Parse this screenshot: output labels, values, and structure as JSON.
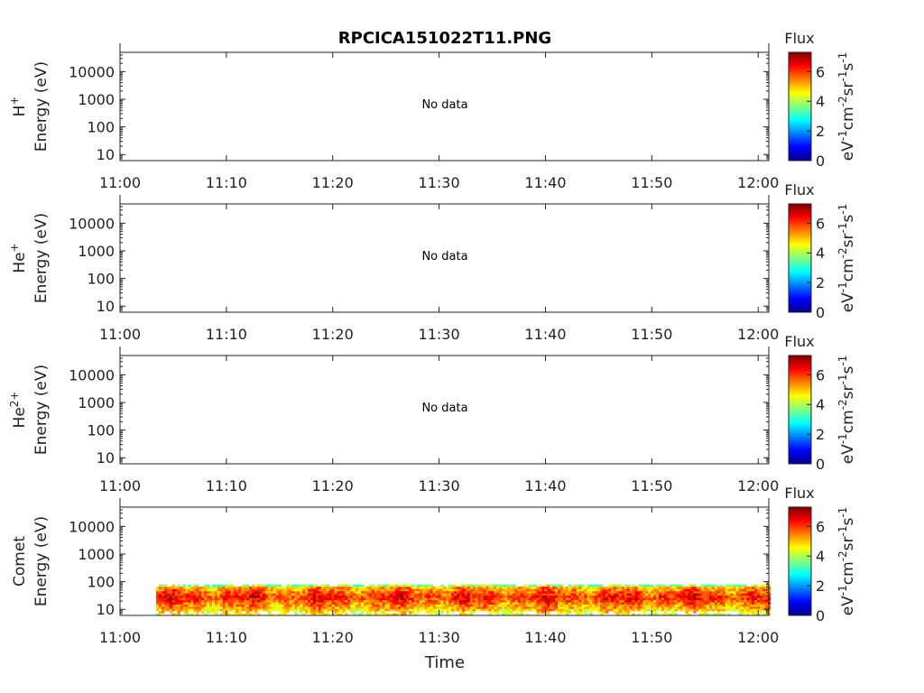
{
  "chart_data": {
    "title": "RPCICA151022T11.PNG",
    "type": "heatmap",
    "xlabel": "Time",
    "x_ticks": [
      "11:00",
      "11:10",
      "11:20",
      "11:30",
      "11:40",
      "11:50",
      "12:00"
    ],
    "x_range": [
      "11:00",
      "12:01"
    ],
    "y_scale": "log",
    "y_range": [
      6,
      50000
    ],
    "y_ticks": [
      "10",
      "100",
      "1000",
      "10000"
    ],
    "y_tick_values": [
      10,
      100,
      1000,
      10000
    ],
    "colorbar": {
      "title": "Flux",
      "unit_label": "eV-1cm-2sr-1s-1",
      "unit_parts": [
        {
          "t": "eV",
          "sup": false
        },
        {
          "t": "-1",
          "sup": true
        },
        {
          "t": "cm",
          "sup": false
        },
        {
          "t": "-2",
          "sup": true
        },
        {
          "t": "sr",
          "sup": false
        },
        {
          "t": "-1",
          "sup": true
        },
        {
          "t": "s",
          "sup": false
        },
        {
          "t": "-1",
          "sup": true
        }
      ],
      "range": [
        0,
        7.3
      ],
      "ticks": [
        "0",
        "2",
        "4",
        "6"
      ],
      "tick_values": [
        0,
        2,
        4,
        6
      ],
      "colormap": "jet"
    },
    "panels": [
      {
        "species": "H",
        "charge": "+",
        "ylabel": "Energy (eV)",
        "message": "No data",
        "has_data": false
      },
      {
        "species": "He",
        "charge": "+",
        "ylabel": "Energy (eV)",
        "message": "No data",
        "has_data": false
      },
      {
        "species": "He",
        "charge": "2+",
        "ylabel": "Energy (eV)",
        "message": "No data",
        "has_data": false
      },
      {
        "species": "Comet",
        "charge": "",
        "ylabel": "Energy (eV)",
        "message": "",
        "has_data": true,
        "data_time_range": [
          "11:03",
          "12:01"
        ],
        "data_energy_range_eV": [
          6,
          80
        ],
        "flux_typical": [
          4,
          7
        ]
      }
    ]
  }
}
